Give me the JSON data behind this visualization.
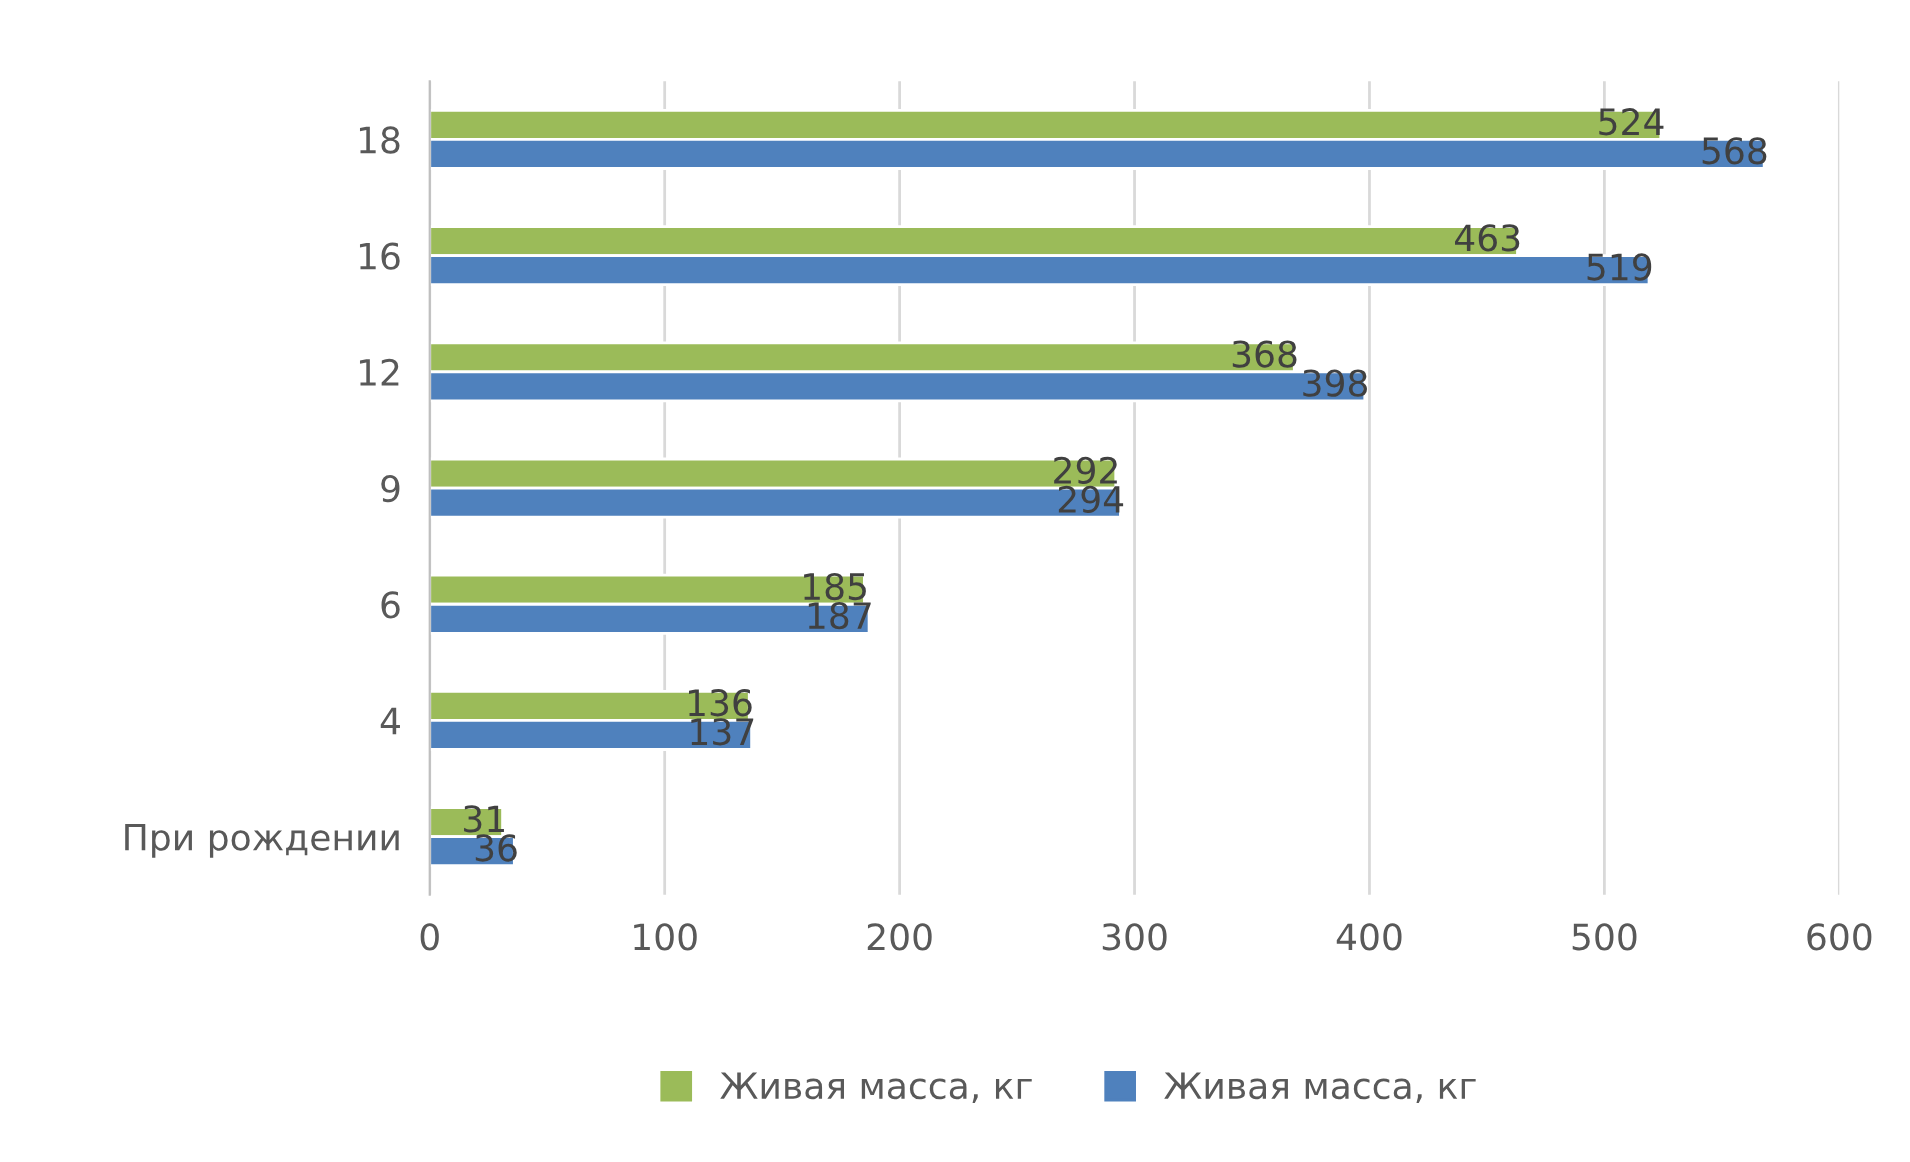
{
  "chart_data": {
    "type": "bar",
    "orientation": "horizontal",
    "categories": [
      "18",
      "16",
      "12",
      "9",
      "6",
      "4",
      "При рождении"
    ],
    "series": [
      {
        "name": "Живая масса, кг",
        "color": "#9bbb59",
        "values": [
          524,
          463,
          368,
          292,
          185,
          136,
          31
        ]
      },
      {
        "name": "Живая масса, кг",
        "color": "#4f81bd",
        "values": [
          568,
          519,
          398,
          294,
          187,
          137,
          36
        ]
      }
    ],
    "xlim": [
      0,
      600
    ],
    "xticks": [
      0,
      100,
      200,
      300,
      400,
      500,
      600
    ],
    "grid": "x",
    "legend": "bottom",
    "data_labels": true
  }
}
